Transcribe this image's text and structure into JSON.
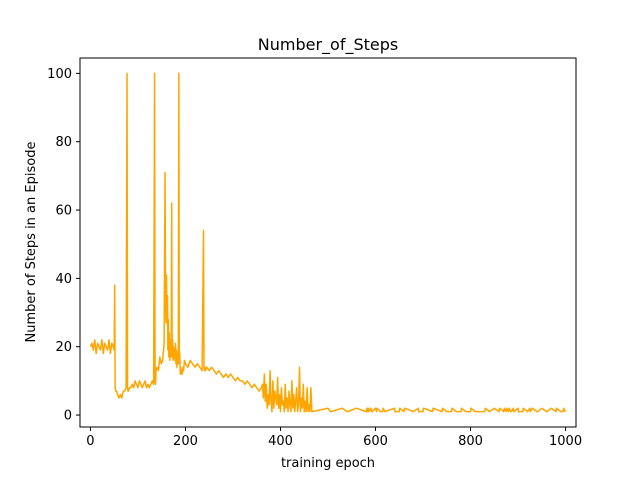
{
  "chart_data": {
    "type": "line",
    "title": "Number_of_Steps",
    "xlabel": "training epoch",
    "ylabel": "Number of Steps in an Episode",
    "xlim": [
      -22,
      1022
    ],
    "ylim": [
      -3.5,
      104.5
    ],
    "xticks": [
      0,
      200,
      400,
      600,
      800,
      1000
    ],
    "yticks": [
      0,
      20,
      40,
      60,
      80,
      100
    ],
    "grid": false,
    "legend": "none",
    "series": [
      {
        "color": "#ffa500",
        "x": [
          0,
          3,
          6,
          9,
          12,
          15,
          18,
          21,
          24,
          27,
          30,
          33,
          36,
          39,
          42,
          45,
          48,
          50,
          51,
          52,
          53,
          55,
          57,
          60,
          63,
          66,
          69,
          72,
          75,
          77,
          78,
          79,
          80,
          82,
          85,
          88,
          91,
          94,
          97,
          100,
          103,
          106,
          109,
          112,
          115,
          118,
          121,
          124,
          127,
          130,
          133,
          135,
          136,
          137,
          138,
          140,
          143,
          146,
          149,
          152,
          155,
          157,
          158,
          159,
          160,
          161,
          162,
          163,
          164,
          165,
          166,
          167,
          168,
          169,
          170,
          171,
          172,
          173,
          174,
          175,
          176,
          177,
          178,
          179,
          180,
          181,
          182,
          183,
          184,
          185,
          186,
          187,
          188,
          189,
          190,
          191,
          192,
          193,
          194,
          195,
          196,
          198,
          200,
          205,
          210,
          215,
          220,
          225,
          230,
          235,
          238,
          239,
          240,
          241,
          242,
          245,
          250,
          255,
          260,
          265,
          270,
          275,
          280,
          285,
          290,
          295,
          300,
          305,
          310,
          315,
          320,
          325,
          330,
          335,
          340,
          345,
          350,
          355,
          360,
          362,
          364,
          366,
          368,
          370,
          372,
          374,
          376,
          378,
          380,
          382,
          384,
          386,
          388,
          390,
          392,
          394,
          396,
          398,
          400,
          402,
          404,
          406,
          408,
          410,
          412,
          414,
          416,
          418,
          420,
          422,
          424,
          426,
          428,
          430,
          432,
          434,
          436,
          438,
          440,
          442,
          444,
          446,
          448,
          450,
          452,
          454,
          456,
          458,
          460,
          462,
          464,
          466,
          500,
          505,
          506,
          530,
          540,
          541,
          560,
          580,
          581,
          582,
          583,
          585,
          586,
          590,
          592,
          593,
          600,
          602,
          603,
          610,
          615,
          616,
          620,
          640,
          641,
          650,
          651,
          660,
          661,
          680,
          690,
          691,
          700,
          701,
          720,
          721,
          740,
          741,
          750,
          760,
          761,
          770,
          780,
          781,
          790,
          800,
          801,
          810,
          830,
          831,
          840,
          850,
          860,
          861,
          870,
          871,
          875,
          876,
          880,
          881,
          885,
          886,
          890,
          891,
          900,
          901,
          910,
          911,
          920,
          925,
          926,
          930,
          940,
          941,
          950,
          960,
          961,
          970,
          980,
          981,
          990,
          995,
          996,
          1000
        ],
        "y": [
          20,
          21,
          19,
          22,
          18,
          21,
          20,
          19,
          22,
          18,
          21,
          20,
          19,
          22,
          18,
          21,
          20,
          19,
          38,
          8,
          7,
          7,
          6,
          5,
          6,
          5,
          7,
          7,
          8,
          100,
          8,
          7,
          7,
          8,
          8,
          9,
          8,
          10,
          9,
          8,
          10,
          9,
          8,
          9,
          10,
          8,
          9,
          8,
          9,
          10,
          9,
          100,
          10,
          9,
          13,
          14,
          13,
          17,
          15,
          16,
          21,
          71,
          33,
          27,
          41,
          27,
          35,
          19,
          28,
          17,
          24,
          16,
          22,
          17,
          19,
          62,
          17,
          22,
          16,
          20,
          17,
          19,
          16,
          21,
          15,
          19,
          14,
          18,
          15,
          17,
          100,
          15,
          18,
          12,
          14,
          12,
          13,
          12,
          13,
          14,
          13,
          16,
          15,
          14,
          16,
          15,
          14,
          15,
          14,
          13,
          54,
          14,
          13,
          14,
          13,
          14,
          13,
          14,
          13,
          12,
          13,
          12,
          11,
          12,
          11,
          12,
          11,
          10,
          11,
          10,
          10,
          9,
          10,
          9,
          8,
          9,
          8,
          7,
          8,
          9,
          5,
          12,
          4,
          9,
          2,
          6,
          3,
          13,
          4,
          1,
          10,
          2,
          7,
          5,
          3,
          11,
          2,
          6,
          1,
          8,
          3,
          4,
          1,
          9,
          2,
          5,
          1,
          7,
          3,
          1,
          10,
          2,
          6,
          1,
          4,
          8,
          1,
          3,
          14,
          1,
          5,
          2,
          9,
          1,
          4,
          1,
          8,
          1,
          3,
          1,
          8,
          1,
          2,
          1,
          1,
          2,
          1,
          1,
          2,
          1,
          1,
          2,
          1,
          2,
          1,
          2,
          1,
          1,
          2,
          1,
          2,
          1,
          1,
          2,
          1,
          2,
          1,
          1,
          2,
          1,
          2,
          1,
          2,
          1,
          1,
          2,
          1,
          2,
          1,
          2,
          1,
          1,
          2,
          1,
          1,
          2,
          1,
          1,
          2,
          1,
          1,
          2,
          1,
          2,
          1,
          2,
          1,
          2,
          1,
          2,
          1,
          2,
          1,
          1,
          2,
          1,
          2,
          1,
          1,
          2,
          1,
          2,
          1,
          2,
          1,
          1,
          2,
          1,
          1,
          2,
          1,
          2,
          1,
          1,
          2,
          1
        ]
      }
    ]
  }
}
